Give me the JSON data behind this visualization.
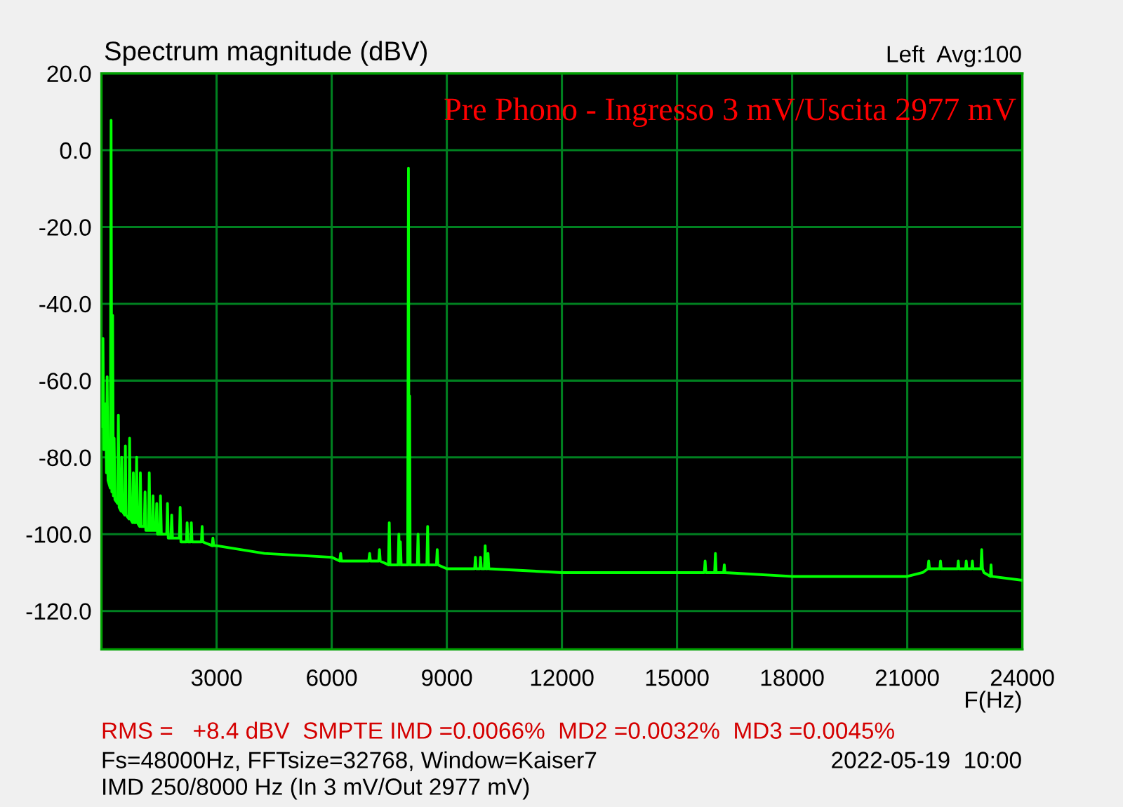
{
  "chart_data": {
    "type": "line",
    "title": "Pre Phono - Ingresso 3 mV/Uscita 2977 mV",
    "ylabel": "Spectrum magnitude (dBV)",
    "xlabel": "F(Hz)",
    "annotations": [
      "Left  Avg:100",
      "RMS =   +8.4 dBV  SMPTE IMD =0.0066%  MD2 =0.0032%  MD3 =0.0045%",
      "Fs=48000Hz, FFTsize=32768, Window=Kaiser7",
      "2022-05-19  10:00",
      "IMD 250/8000 Hz (In 3 mV/Out 2977 mV)"
    ],
    "x": [
      0,
      20,
      38,
      60,
      110,
      130,
      148,
      170,
      230,
      250,
      270,
      290,
      310,
      330,
      350,
      420,
      440,
      460,
      510,
      526,
      545,
      605,
      623,
      640,
      715,
      733,
      755,
      810,
      830,
      850,
      895,
      916,
      935,
      995,
      1013,
      1035,
      1115,
      1135,
      1155,
      1225,
      1245,
      1265,
      1325,
      1343,
      1360,
      1420,
      1440,
      1460,
      1520,
      1538,
      1560,
      1700,
      1720,
      1740,
      1810,
      1830,
      1850,
      2030,
      2050,
      2070,
      2215,
      2232,
      2250,
      2325,
      2342,
      2360,
      2605,
      2623,
      2640,
      2885,
      2904,
      2925,
      3000,
      4245,
      6000,
      6210,
      6233,
      6255,
      6965,
      6988,
      7010,
      7225,
      7245,
      7265,
      7480,
      7500,
      7520,
      7730,
      7750,
      7768,
      7790,
      7810,
      7980,
      8000,
      8015,
      8030,
      8045,
      8230,
      8250,
      8270,
      8480,
      8500,
      8520,
      8730,
      8750,
      8770,
      9000,
      9725,
      9745,
      9765,
      9860,
      9878,
      9900,
      9980,
      10000,
      10020,
      10055,
      10074,
      10095,
      12000,
      15000,
      15712,
      15732,
      15752,
      15980,
      16000,
      16020,
      16215,
      16232,
      16250,
      18000,
      21000,
      21400,
      21540,
      21560,
      21580,
      21850,
      21867,
      21885,
      22313,
      22330,
      22347,
      22520,
      22537,
      22555,
      22680,
      22697,
      22715,
      22920,
      22940,
      22960,
      23000,
      23168,
      23184,
      23200,
      24000
    ],
    "values": [
      -64,
      -72,
      -49,
      -78,
      -66,
      -84,
      -59,
      -86,
      -88,
      7.8,
      -89,
      -43,
      -90,
      -75,
      -91,
      -92,
      -69,
      -93,
      -94,
      -80,
      -94,
      -95,
      -77,
      -95,
      -96,
      -75,
      -96,
      -97,
      -84,
      -97,
      -97,
      -80,
      -97,
      -98,
      -84,
      -98,
      -98,
      -89,
      -99,
      -99,
      -84,
      -99,
      -99,
      -90,
      -99,
      -99,
      -92,
      -100,
      -100,
      -90,
      -100,
      -100,
      -92,
      -101,
      -101,
      -95,
      -101,
      -101,
      -93,
      -102,
      -102,
      -97,
      -102,
      -102,
      -97,
      -102,
      -102,
      -98,
      -102,
      -103,
      -101,
      -103,
      -103,
      -105,
      -106,
      -107,
      -105,
      -107,
      -107,
      -105,
      -107,
      -107,
      -104,
      -107,
      -108,
      -97,
      -108,
      -108,
      -100,
      -108,
      -102,
      -108,
      -108,
      -4.7,
      -108,
      -64,
      -108,
      -108,
      -100,
      -108,
      -108,
      -98,
      -108,
      -108,
      -104,
      -108,
      -109,
      -109,
      -106,
      -109,
      -109,
      -106,
      -109,
      -109,
      -103,
      -109,
      -109,
      -105,
      -109,
      -110,
      -110,
      -110,
      -107,
      -110,
      -110,
      -105,
      -110,
      -110,
      -108,
      -110,
      -111,
      -111,
      -110,
      -109,
      -107,
      -109,
      -109,
      -107,
      -109,
      -109,
      -107,
      -109,
      -109,
      -107,
      -109,
      -109,
      -107,
      -109,
      -109,
      -104,
      -109,
      -110,
      -111,
      -108,
      -111,
      -112
    ],
    "color": "#00ff00",
    "line_style": "solid",
    "xlim": [
      0,
      24000
    ],
    "ylim": [
      -130,
      20
    ],
    "xticks": [
      3000,
      6000,
      9000,
      12000,
      15000,
      18000,
      21000,
      24000
    ],
    "yticks": [
      {
        "value": 20,
        "label": "20.0"
      },
      {
        "value": 0,
        "label": "0.0"
      },
      {
        "value": -20,
        "label": "-20.0"
      },
      {
        "value": -40,
        "label": "-40.0"
      },
      {
        "value": -60,
        "label": "-60.0"
      },
      {
        "value": -80,
        "label": "-80.0"
      },
      {
        "value": -100,
        "label": "-100.0"
      },
      {
        "value": -120,
        "label": "-120.0"
      }
    ],
    "grid": true
  }
}
